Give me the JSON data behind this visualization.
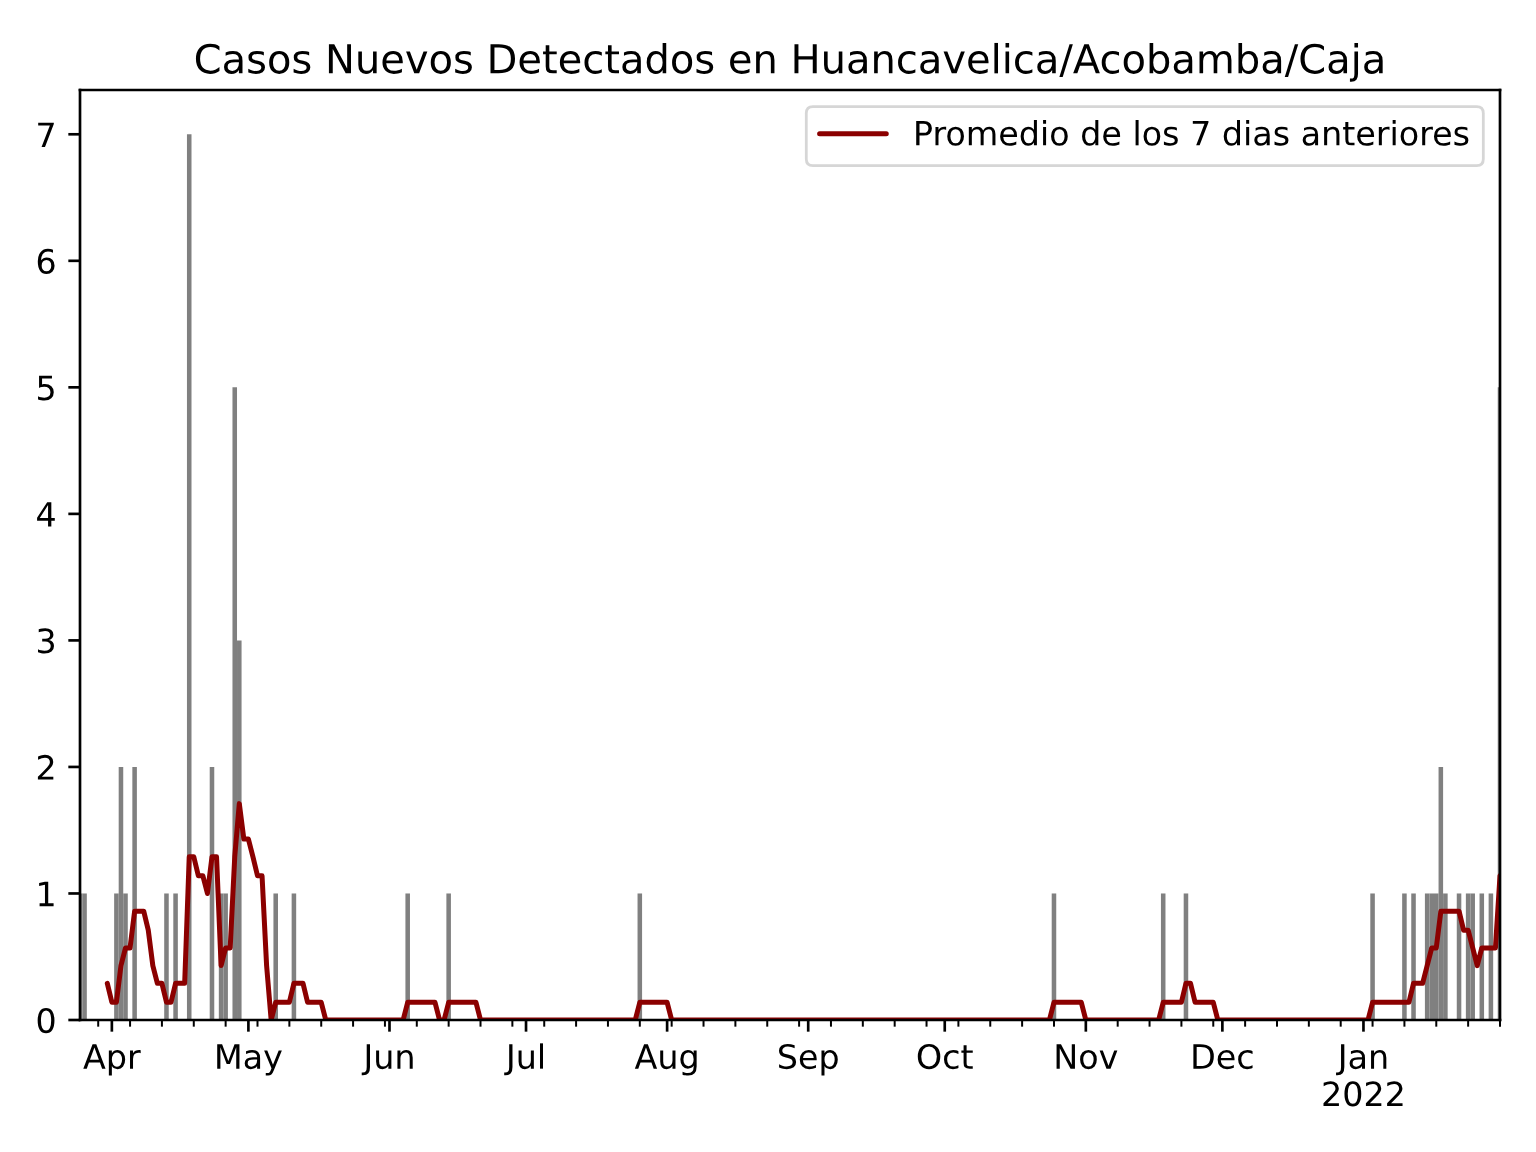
{
  "chart_data": {
    "type": "bar",
    "title": "Casos Nuevos Detectados en Huancavelica/Acobamba/Caja",
    "xlim": [
      "2021-03-25",
      "2022-01-31"
    ],
    "ylim": [
      0,
      7.35
    ],
    "yticks": [
      0,
      1,
      2,
      3,
      4,
      5,
      6,
      7
    ],
    "xticks": [
      {
        "value": "2021-04-01",
        "label": "Apr"
      },
      {
        "value": "2021-05-01",
        "label": "May"
      },
      {
        "value": "2021-06-01",
        "label": "Jun"
      },
      {
        "value": "2021-07-01",
        "label": "Jul"
      },
      {
        "value": "2021-08-01",
        "label": "Aug"
      },
      {
        "value": "2021-09-01",
        "label": "Sep"
      },
      {
        "value": "2021-10-01",
        "label": "Oct"
      },
      {
        "value": "2021-11-01",
        "label": "Nov"
      },
      {
        "value": "2021-12-01",
        "label": "Dec"
      },
      {
        "value": "2022-01-01",
        "label": "Jan\n2022"
      },
      {
        "value": "2021-03-29",
        "label": null
      },
      {
        "value": "2021-04-05",
        "label": null
      },
      {
        "value": "2021-04-12",
        "label": null
      },
      {
        "value": "2021-04-19",
        "label": null
      },
      {
        "value": "2021-04-26",
        "label": null
      },
      {
        "value": "2021-05-03",
        "label": null
      },
      {
        "value": "2021-05-10",
        "label": null
      },
      {
        "value": "2021-05-17",
        "label": null
      },
      {
        "value": "2021-05-24",
        "label": null
      },
      {
        "value": "2021-05-31",
        "label": null
      },
      {
        "value": "2021-06-07",
        "label": null
      },
      {
        "value": "2021-06-14",
        "label": null
      },
      {
        "value": "2021-06-21",
        "label": null
      },
      {
        "value": "2021-06-28",
        "label": null
      },
      {
        "value": "2021-07-05",
        "label": null
      },
      {
        "value": "2021-07-12",
        "label": null
      },
      {
        "value": "2021-07-19",
        "label": null
      },
      {
        "value": "2021-07-26",
        "label": null
      },
      {
        "value": "2021-08-02",
        "label": null
      },
      {
        "value": "2021-08-09",
        "label": null
      },
      {
        "value": "2021-08-16",
        "label": null
      },
      {
        "value": "2021-08-23",
        "label": null
      },
      {
        "value": "2021-08-30",
        "label": null
      },
      {
        "value": "2021-09-06",
        "label": null
      },
      {
        "value": "2021-09-13",
        "label": null
      },
      {
        "value": "2021-09-20",
        "label": null
      },
      {
        "value": "2021-09-27",
        "label": null
      },
      {
        "value": "2021-10-04",
        "label": null
      },
      {
        "value": "2021-10-11",
        "label": null
      },
      {
        "value": "2021-10-18",
        "label": null
      },
      {
        "value": "2021-10-25",
        "label": null
      },
      {
        "value": "2021-11-08",
        "label": null
      },
      {
        "value": "2021-11-15",
        "label": null
      },
      {
        "value": "2021-11-22",
        "label": null
      },
      {
        "value": "2021-11-29",
        "label": null
      },
      {
        "value": "2021-12-06",
        "label": null
      },
      {
        "value": "2021-12-13",
        "label": null
      },
      {
        "value": "2021-12-20",
        "label": null
      },
      {
        "value": "2021-12-27",
        "label": null
      },
      {
        "value": "2022-01-03",
        "label": null
      },
      {
        "value": "2022-01-10",
        "label": null
      },
      {
        "value": "2022-01-17",
        "label": null
      },
      {
        "value": "2022-01-24",
        "label": null
      },
      {
        "value": "2022-01-31",
        "label": null
      }
    ],
    "legend": "top right",
    "series": [
      {
        "color": "#808080",
        "x": [
          "2021-03-25",
          "2021-03-26",
          "2021-04-02",
          "2021-04-03",
          "2021-04-04",
          "2021-04-06",
          "2021-04-13",
          "2021-04-15",
          "2021-04-18",
          "2021-04-23",
          "2021-04-25",
          "2021-04-26",
          "2021-04-28",
          "2021-04-29",
          "2021-05-07",
          "2021-05-11",
          "2021-06-05",
          "2021-06-14",
          "2021-07-26",
          "2021-10-25",
          "2021-11-18",
          "2021-11-23",
          "2022-01-03",
          "2022-01-10",
          "2022-01-12",
          "2022-01-15",
          "2022-01-16",
          "2022-01-17",
          "2022-01-18",
          "2022-01-19",
          "2022-01-22",
          "2022-01-24",
          "2022-01-25",
          "2022-01-27",
          "2022-01-29",
          "2022-01-31"
        ],
        "values": [
          1,
          1,
          1,
          2,
          1,
          2,
          1,
          1,
          7,
          2,
          1,
          1,
          5,
          3,
          1,
          1,
          1,
          1,
          1,
          1,
          1,
          1,
          1,
          1,
          1,
          1,
          1,
          1,
          2,
          1,
          1,
          1,
          1,
          1,
          1,
          5
        ]
      },
      {
        "type": "line",
        "name": "Promedio de los 7 dias anteriores",
        "color": "#8b0000",
        "x": [
          "2021-03-31",
          "2021-04-01",
          "2021-04-02",
          "2021-04-03",
          "2021-04-04",
          "2021-04-05",
          "2021-04-06",
          "2021-04-08",
          "2021-04-09",
          "2021-04-10",
          "2021-04-11",
          "2021-04-12",
          "2021-04-13",
          "2021-04-14",
          "2021-04-15",
          "2021-04-17",
          "2021-04-18",
          "2021-04-19",
          "2021-04-20",
          "2021-04-21",
          "2021-04-22",
          "2021-04-23",
          "2021-04-24",
          "2021-04-25",
          "2021-04-26",
          "2021-04-27",
          "2021-04-28",
          "2021-04-29",
          "2021-04-30",
          "2021-05-01",
          "2021-05-02",
          "2021-05-03",
          "2021-05-04",
          "2021-05-05",
          "2021-05-06",
          "2021-05-07",
          "2021-05-10",
          "2021-05-11",
          "2021-05-13",
          "2021-05-14",
          "2021-05-17",
          "2021-05-18",
          "2021-06-04",
          "2021-06-05",
          "2021-06-11",
          "2021-06-12",
          "2021-06-13",
          "2021-06-14",
          "2021-06-20",
          "2021-06-21",
          "2021-07-25",
          "2021-07-26",
          "2021-08-01",
          "2021-08-02",
          "2021-10-24",
          "2021-10-25",
          "2021-10-31",
          "2021-11-01",
          "2021-11-17",
          "2021-11-18",
          "2021-11-22",
          "2021-11-23",
          "2021-11-24",
          "2021-11-25",
          "2021-11-29",
          "2021-11-30",
          "2022-01-02",
          "2022-01-03",
          "2022-01-11",
          "2022-01-12",
          "2022-01-14",
          "2022-01-15",
          "2022-01-16",
          "2022-01-17",
          "2022-01-18",
          "2022-01-22",
          "2022-01-23",
          "2022-01-24",
          "2022-01-25",
          "2022-01-26",
          "2022-01-27",
          "2022-01-30",
          "2022-01-31"
        ],
        "values": [
          0.29,
          0.14,
          0.14,
          0.43,
          0.57,
          0.57,
          0.86,
          0.86,
          0.71,
          0.43,
          0.29,
          0.29,
          0.14,
          0.14,
          0.29,
          0.29,
          1.29,
          1.29,
          1.14,
          1.14,
          1.0,
          1.29,
          1.29,
          0.43,
          0.57,
          0.57,
          1.29,
          1.71,
          1.43,
          1.43,
          1.29,
          1.14,
          1.14,
          0.43,
          0,
          0.14,
          0.14,
          0.29,
          0.29,
          0.14,
          0.14,
          0,
          0,
          0.14,
          0.14,
          0,
          0,
          0.14,
          0.14,
          0,
          0,
          0.14,
          0.14,
          0,
          0,
          0.14,
          0.14,
          0,
          0,
          0.14,
          0.14,
          0.29,
          0.29,
          0.14,
          0.14,
          0,
          0,
          0.14,
          0.14,
          0.29,
          0.29,
          0.43,
          0.57,
          0.57,
          0.86,
          0.86,
          0.71,
          0.71,
          0.57,
          0.43,
          0.57,
          0.57,
          1.14
        ]
      }
    ]
  }
}
